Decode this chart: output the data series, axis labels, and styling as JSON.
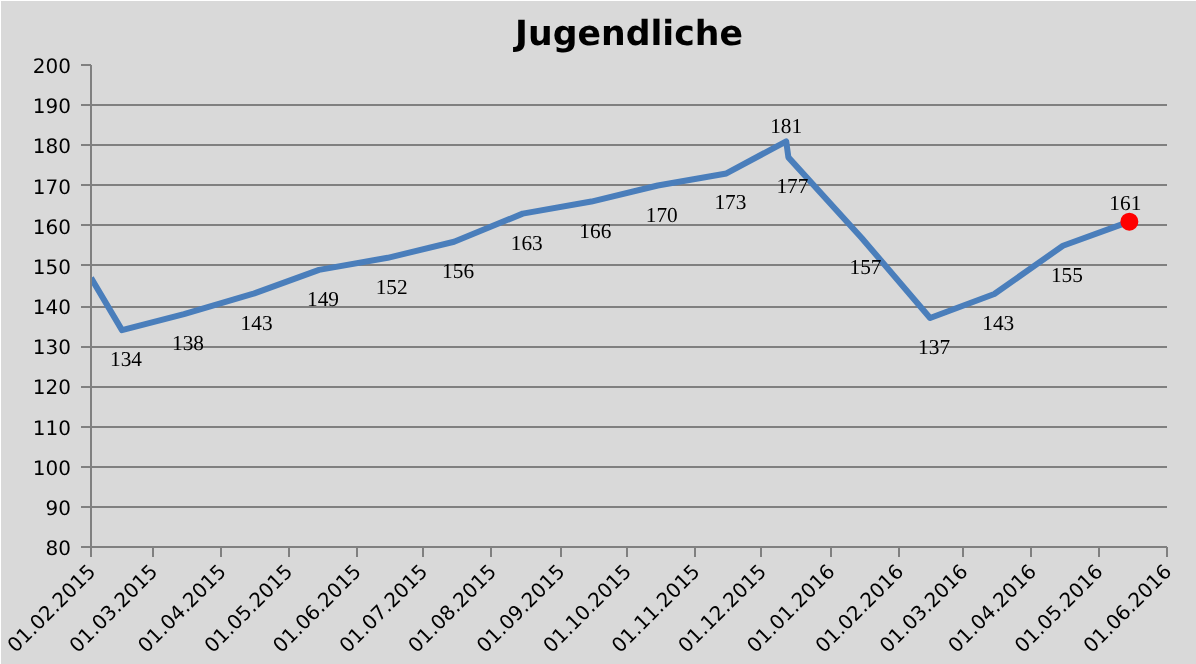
{
  "chart_data": {
    "type": "line",
    "title": "Jugendliche",
    "x": [
      "2015-02-01",
      "2015-02-15",
      "2015-03-15",
      "2015-04-15",
      "2015-05-15",
      "2015-06-15",
      "2015-07-15",
      "2015-08-15",
      "2015-09-15",
      "2015-10-15",
      "2015-11-15",
      "2015-12-12",
      "2015-12-13",
      "2016-01-15",
      "2016-02-15",
      "2016-03-15",
      "2016-04-15",
      "2016-05-15"
    ],
    "series": [
      {
        "color": "#4a7ebb",
        "values": [
          147,
          134,
          138,
          143,
          149,
          152,
          156,
          163,
          166,
          170,
          173,
          181,
          177,
          157,
          137,
          143,
          155,
          161
        ],
        "value_labels": [
          null,
          "134",
          "138",
          "143",
          "149",
          "152",
          "156",
          "163",
          "166",
          "170",
          "173",
          "181",
          "177",
          "157",
          "137",
          "143",
          "155",
          null
        ]
      },
      {
        "type": "scatter",
        "marker": "circle",
        "color": "#ff0000",
        "x": [
          "2016-05-15"
        ],
        "values": [
          161
        ],
        "value_labels": [
          "161"
        ]
      }
    ],
    "xlim": [
      "2015-02-01",
      "2016-06-01"
    ],
    "xticks": [
      {
        "value": "2015-02-01",
        "label": "01.02.2015"
      },
      {
        "value": "2015-03-01",
        "label": "01.03.2015"
      },
      {
        "value": "2015-04-01",
        "label": "01.04.2015"
      },
      {
        "value": "2015-05-01",
        "label": "01.05.2015"
      },
      {
        "value": "2015-06-01",
        "label": "01.06.2015"
      },
      {
        "value": "2015-07-01",
        "label": "01.07.2015"
      },
      {
        "value": "2015-08-01",
        "label": "01.08.2015"
      },
      {
        "value": "2015-09-01",
        "label": "01.09.2015"
      },
      {
        "value": "2015-10-01",
        "label": "01.10.2015"
      },
      {
        "value": "2015-11-01",
        "label": "01.11.2015"
      },
      {
        "value": "2015-12-01",
        "label": "01.12.2015"
      },
      {
        "value": "2016-01-01",
        "label": "01.01.2016"
      },
      {
        "value": "2016-02-01",
        "label": "01.02.2016"
      },
      {
        "value": "2016-03-01",
        "label": "01.03.2016"
      },
      {
        "value": "2016-04-01",
        "label": "01.04.2016"
      },
      {
        "value": "2016-05-01",
        "label": "01.05.2016"
      },
      {
        "value": "2016-06-01",
        "label": "01.06.2016"
      }
    ],
    "ylim": [
      80,
      200
    ],
    "yticks": [
      80,
      90,
      100,
      110,
      120,
      130,
      140,
      150,
      160,
      170,
      180,
      190,
      200
    ],
    "grid": "y",
    "marker": "none",
    "line_style": "solid"
  }
}
